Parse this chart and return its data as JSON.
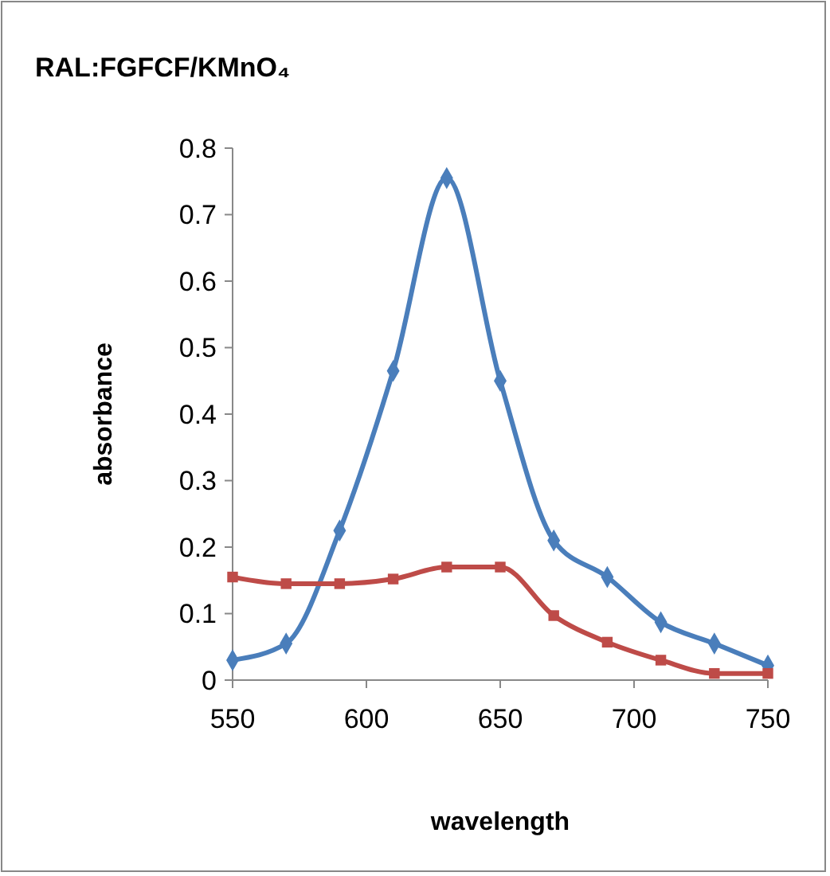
{
  "chart_data": {
    "type": "line",
    "title": "RAL:FGFCF/KMnO₄",
    "xlabel": "wavelength",
    "ylabel": "absorbance",
    "x": [
      550,
      570,
      590,
      610,
      630,
      650,
      670,
      690,
      710,
      730,
      750
    ],
    "series": [
      {
        "color": "#4a7ebb",
        "marker": "diamond",
        "values": [
          0.03,
          0.055,
          0.225,
          0.465,
          0.755,
          0.45,
          0.21,
          0.155,
          0.087,
          0.055,
          0.022
        ]
      },
      {
        "color": "#be4b48",
        "marker": "square",
        "values": [
          0.155,
          0.145,
          0.145,
          0.152,
          0.17,
          0.17,
          0.097,
          0.057,
          0.03,
          0.01,
          0.01
        ]
      }
    ],
    "xlim": [
      550,
      750
    ],
    "xticks": [
      550,
      600,
      650,
      700,
      750
    ],
    "ylim": [
      0,
      0.8
    ],
    "yticks": [
      0,
      0.1,
      0.2,
      0.3,
      0.4,
      0.5,
      0.6,
      0.7,
      0.8
    ],
    "grid": false
  }
}
